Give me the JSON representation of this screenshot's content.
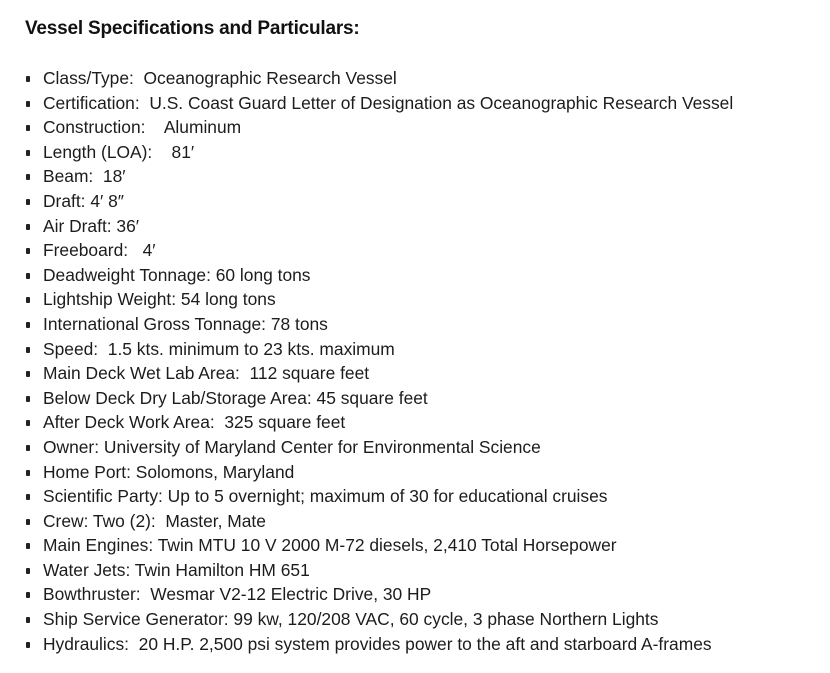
{
  "title": "Vessel Specifications and Particulars:",
  "items": [
    "Class/Type:  Oceanographic Research Vessel",
    "Certification:  U.S. Coast Guard Letter of Designation as Oceanographic Research Vessel",
    "Construction:    Aluminum",
    "Length (LOA):    81′",
    "Beam:  18′",
    "Draft: 4′ 8″",
    "Air Draft: 36′",
    "Freeboard:   4′",
    "Deadweight Tonnage: 60 long tons",
    "Lightship Weight: 54 long tons",
    "International Gross Tonnage: 78 tons",
    "Speed:  1.5 kts. minimum to 23 kts. maximum",
    "Main Deck Wet Lab Area:  112 square feet",
    "Below Deck Dry Lab/Storage Area: 45 square feet",
    "After Deck Work Area:  325 square feet",
    "Owner: University of Maryland Center for Environmental Science",
    "Home Port: Solomons, Maryland",
    "Scientific Party: Up to 5 overnight; maximum of 30 for educational cruises",
    "Crew: Two (2):  Master, Mate",
    "Main Engines: Twin MTU 10 V 2000 M-72 diesels, 2,410 Total Horsepower",
    "Water Jets: Twin Hamilton HM 651",
    "Bowthruster:  Wesmar V2-12 Electric Drive, 30 HP",
    "Ship Service Generator: 99 kw, 120/208 VAC, 60 cycle, 3 phase Northern Lights",
    "Hydraulics:  20 H.P. 2,500 psi system provides power to the aft and starboard A-frames"
  ]
}
